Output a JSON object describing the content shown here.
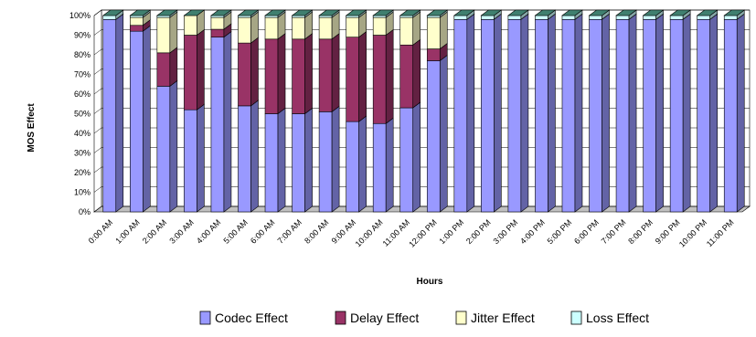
{
  "chart_data": {
    "type": "bar",
    "stacked": true,
    "percent": true,
    "three_d": true,
    "xlabel": "Hours",
    "ylabel": "MOS Effect",
    "ylim": [
      0,
      100
    ],
    "yticks": [
      "0%",
      "10%",
      "20%",
      "30%",
      "40%",
      "50%",
      "60%",
      "70%",
      "80%",
      "90%",
      "100%"
    ],
    "grid": true,
    "legend_position": "bottom",
    "categories": [
      "0:00 AM",
      "1:00 AM",
      "2:00 AM",
      "3:00 AM",
      "4:00 AM",
      "5:00 AM",
      "6:00 AM",
      "7:00 AM",
      "8:00 AM",
      "9:00 AM",
      "10:00 AM",
      "11:00 AM",
      "12:00 PM",
      "1:00 PM",
      "2:00 PM",
      "3:00 PM",
      "4:00 PM",
      "5:00 PM",
      "6:00 PM",
      "7:00 PM",
      "8:00 PM",
      "9:00 PM",
      "10:00 PM",
      "11:00 PM"
    ],
    "series": [
      {
        "name": "Codec Effect",
        "color": "#9999ff",
        "values": [
          98,
          92,
          64,
          52,
          89,
          54,
          50,
          50,
          51,
          46,
          45,
          53,
          77,
          98,
          98,
          98,
          98,
          98,
          98,
          98,
          98,
          98,
          98,
          98
        ]
      },
      {
        "name": "Delay Effect",
        "color": "#993366",
        "values": [
          0,
          3,
          17,
          38,
          4,
          32,
          38,
          38,
          37,
          43,
          45,
          32,
          6,
          0,
          0,
          0,
          0,
          0,
          0,
          0,
          0,
          0,
          0,
          0
        ]
      },
      {
        "name": "Jitter Effect",
        "color": "#ffffcc",
        "values": [
          0,
          4,
          18,
          10,
          6,
          13,
          11,
          11,
          11,
          10,
          9,
          14,
          16,
          0,
          0,
          0,
          0,
          0,
          0,
          0,
          0,
          0,
          0,
          0
        ]
      },
      {
        "name": "Loss Effect",
        "color": "#ccffff",
        "values": [
          2,
          1,
          1,
          0,
          1,
          1,
          1,
          1,
          1,
          1,
          1,
          1,
          1,
          2,
          2,
          2,
          2,
          2,
          2,
          2,
          2,
          2,
          2,
          2
        ]
      }
    ]
  }
}
